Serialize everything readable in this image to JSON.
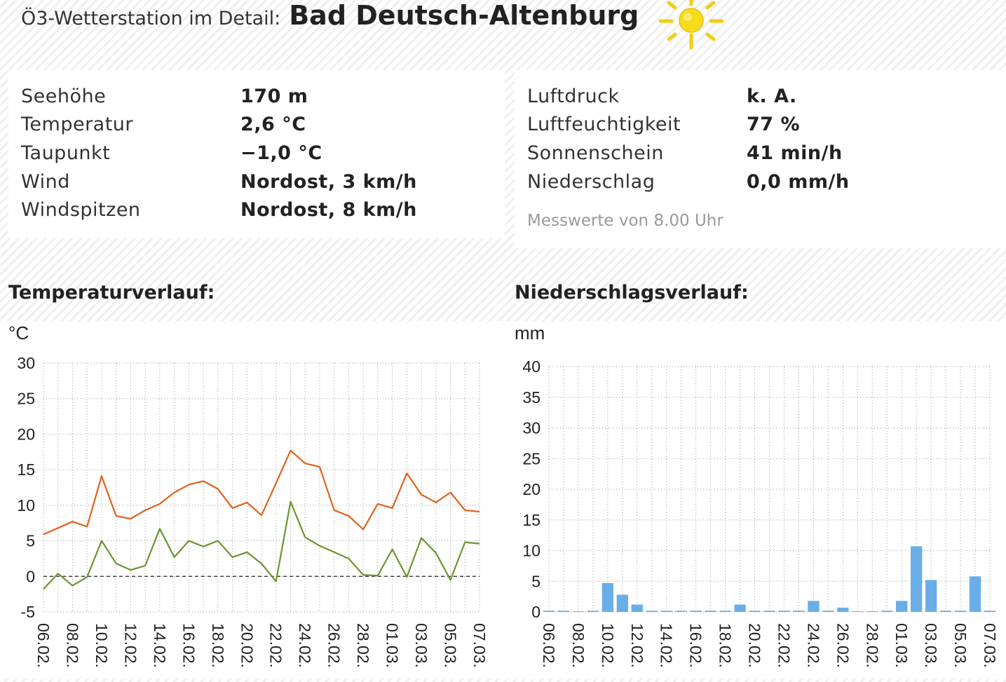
{
  "header": {
    "prefix": "Ö3-Wetterstation im Detail:",
    "station": "Bad Deutsch-Altenburg",
    "weather_icon": "sun-icon"
  },
  "left_panel": [
    {
      "label": "Seehöhe",
      "value": "170 m"
    },
    {
      "label": "Temperatur",
      "value": "2,6 °C"
    },
    {
      "label": "Taupunkt",
      "value": "−1,0 °C"
    },
    {
      "label": "Wind",
      "value": "Nordost, 3 km/h"
    },
    {
      "label": "Windspitzen",
      "value": "Nordost, 8 km/h"
    }
  ],
  "right_panel": [
    {
      "label": "Luftdruck",
      "value": "k. A."
    },
    {
      "label": "Luftfeuchtigkeit",
      "value": "77 %"
    },
    {
      "label": "Sonnenschein",
      "value": "41 min/h"
    },
    {
      "label": "Niederschlag",
      "value": "0,0 mm/h"
    }
  ],
  "note": "Messwerte von 8.00 Uhr",
  "chart_data": [
    {
      "type": "line",
      "title": "Temperaturverlauf:",
      "ylabel": "°C",
      "ylim": [
        -5,
        30
      ],
      "yticks": [
        -5,
        0,
        5,
        10,
        15,
        20,
        25,
        30
      ],
      "x_tick_labels": [
        "06.02.",
        "08.02.",
        "10.02.",
        "12.02.",
        "14.02.",
        "16.02.",
        "18.02.",
        "20.02.",
        "22.02.",
        "24.02.",
        "26.02.",
        "28.02.",
        "01.03.",
        "03.03.",
        "05.03.",
        "07.03."
      ],
      "x": [
        "06.02.",
        "07.02.",
        "08.02.",
        "09.02.",
        "10.02.",
        "11.02.",
        "12.02.",
        "13.02.",
        "14.02.",
        "15.02.",
        "16.02.",
        "17.02.",
        "18.02.",
        "19.02.",
        "20.02.",
        "21.02.",
        "22.02.",
        "23.02.",
        "24.02.",
        "25.02.",
        "26.02.",
        "27.02.",
        "28.02.",
        "29.02.",
        "01.03.",
        "02.03.",
        "03.03.",
        "04.03.",
        "05.03.",
        "06.03.",
        "07.03."
      ],
      "reference_line": 0,
      "grid": true,
      "series": [
        {
          "color": "#e0631d",
          "values": [
            5.9,
            6.8,
            7.7,
            7.0,
            14.1,
            8.5,
            8.1,
            9.3,
            10.2,
            11.8,
            12.9,
            13.4,
            12.3,
            9.6,
            10.4,
            8.6,
            13.1,
            17.7,
            15.9,
            15.4,
            9.3,
            8.5,
            6.6,
            10.2,
            9.6,
            14.5,
            11.5,
            10.4,
            11.8,
            9.3,
            9.1
          ]
        },
        {
          "color": "#6e9430",
          "values": [
            -1.8,
            0.4,
            -1.3,
            -0.1,
            5.0,
            1.8,
            0.9,
            1.5,
            6.7,
            2.7,
            5.0,
            4.2,
            5.0,
            2.7,
            3.4,
            1.8,
            -0.7,
            10.5,
            5.5,
            4.3,
            3.4,
            2.5,
            0.2,
            0.1,
            3.8,
            -0.1,
            5.4,
            3.3,
            -0.5,
            4.8,
            4.6
          ]
        }
      ]
    },
    {
      "type": "bar",
      "title": "Niederschlagsverlauf:",
      "ylabel": "mm",
      "ylim": [
        0,
        40
      ],
      "yticks": [
        0,
        5,
        10,
        15,
        20,
        25,
        30,
        35,
        40
      ],
      "x_tick_labels": [
        "06.02.",
        "08.02.",
        "10.02.",
        "12.02.",
        "14.02.",
        "16.02.",
        "18.02.",
        "20.02.",
        "22.02.",
        "24.02.",
        "26.02.",
        "28.02.",
        "01.03.",
        "03.03.",
        "05.03.",
        "07.03."
      ],
      "categories": [
        "06.02.",
        "07.02.",
        "08.02.",
        "09.02.",
        "10.02.",
        "11.02.",
        "12.02.",
        "13.02.",
        "14.02.",
        "15.02.",
        "16.02.",
        "17.02.",
        "18.02.",
        "19.02.",
        "20.02.",
        "21.02.",
        "22.02.",
        "23.02.",
        "24.02.",
        "25.02.",
        "26.02.",
        "27.02.",
        "28.02.",
        "29.02.",
        "01.03.",
        "02.03.",
        "03.03.",
        "04.03.",
        "05.03.",
        "06.03.",
        "07.03."
      ],
      "grid": true,
      "bar_color": "#6aaee8",
      "values": [
        0.2,
        0.2,
        0.1,
        0.2,
        4.7,
        2.8,
        1.2,
        0.2,
        0.2,
        0.2,
        0.2,
        0.2,
        0.2,
        1.2,
        0.2,
        0.2,
        0.2,
        0.2,
        1.8,
        0.2,
        0.7,
        0.1,
        0.1,
        0.2,
        1.8,
        10.7,
        5.2,
        0.2,
        0.2,
        5.8,
        0.2
      ]
    }
  ]
}
